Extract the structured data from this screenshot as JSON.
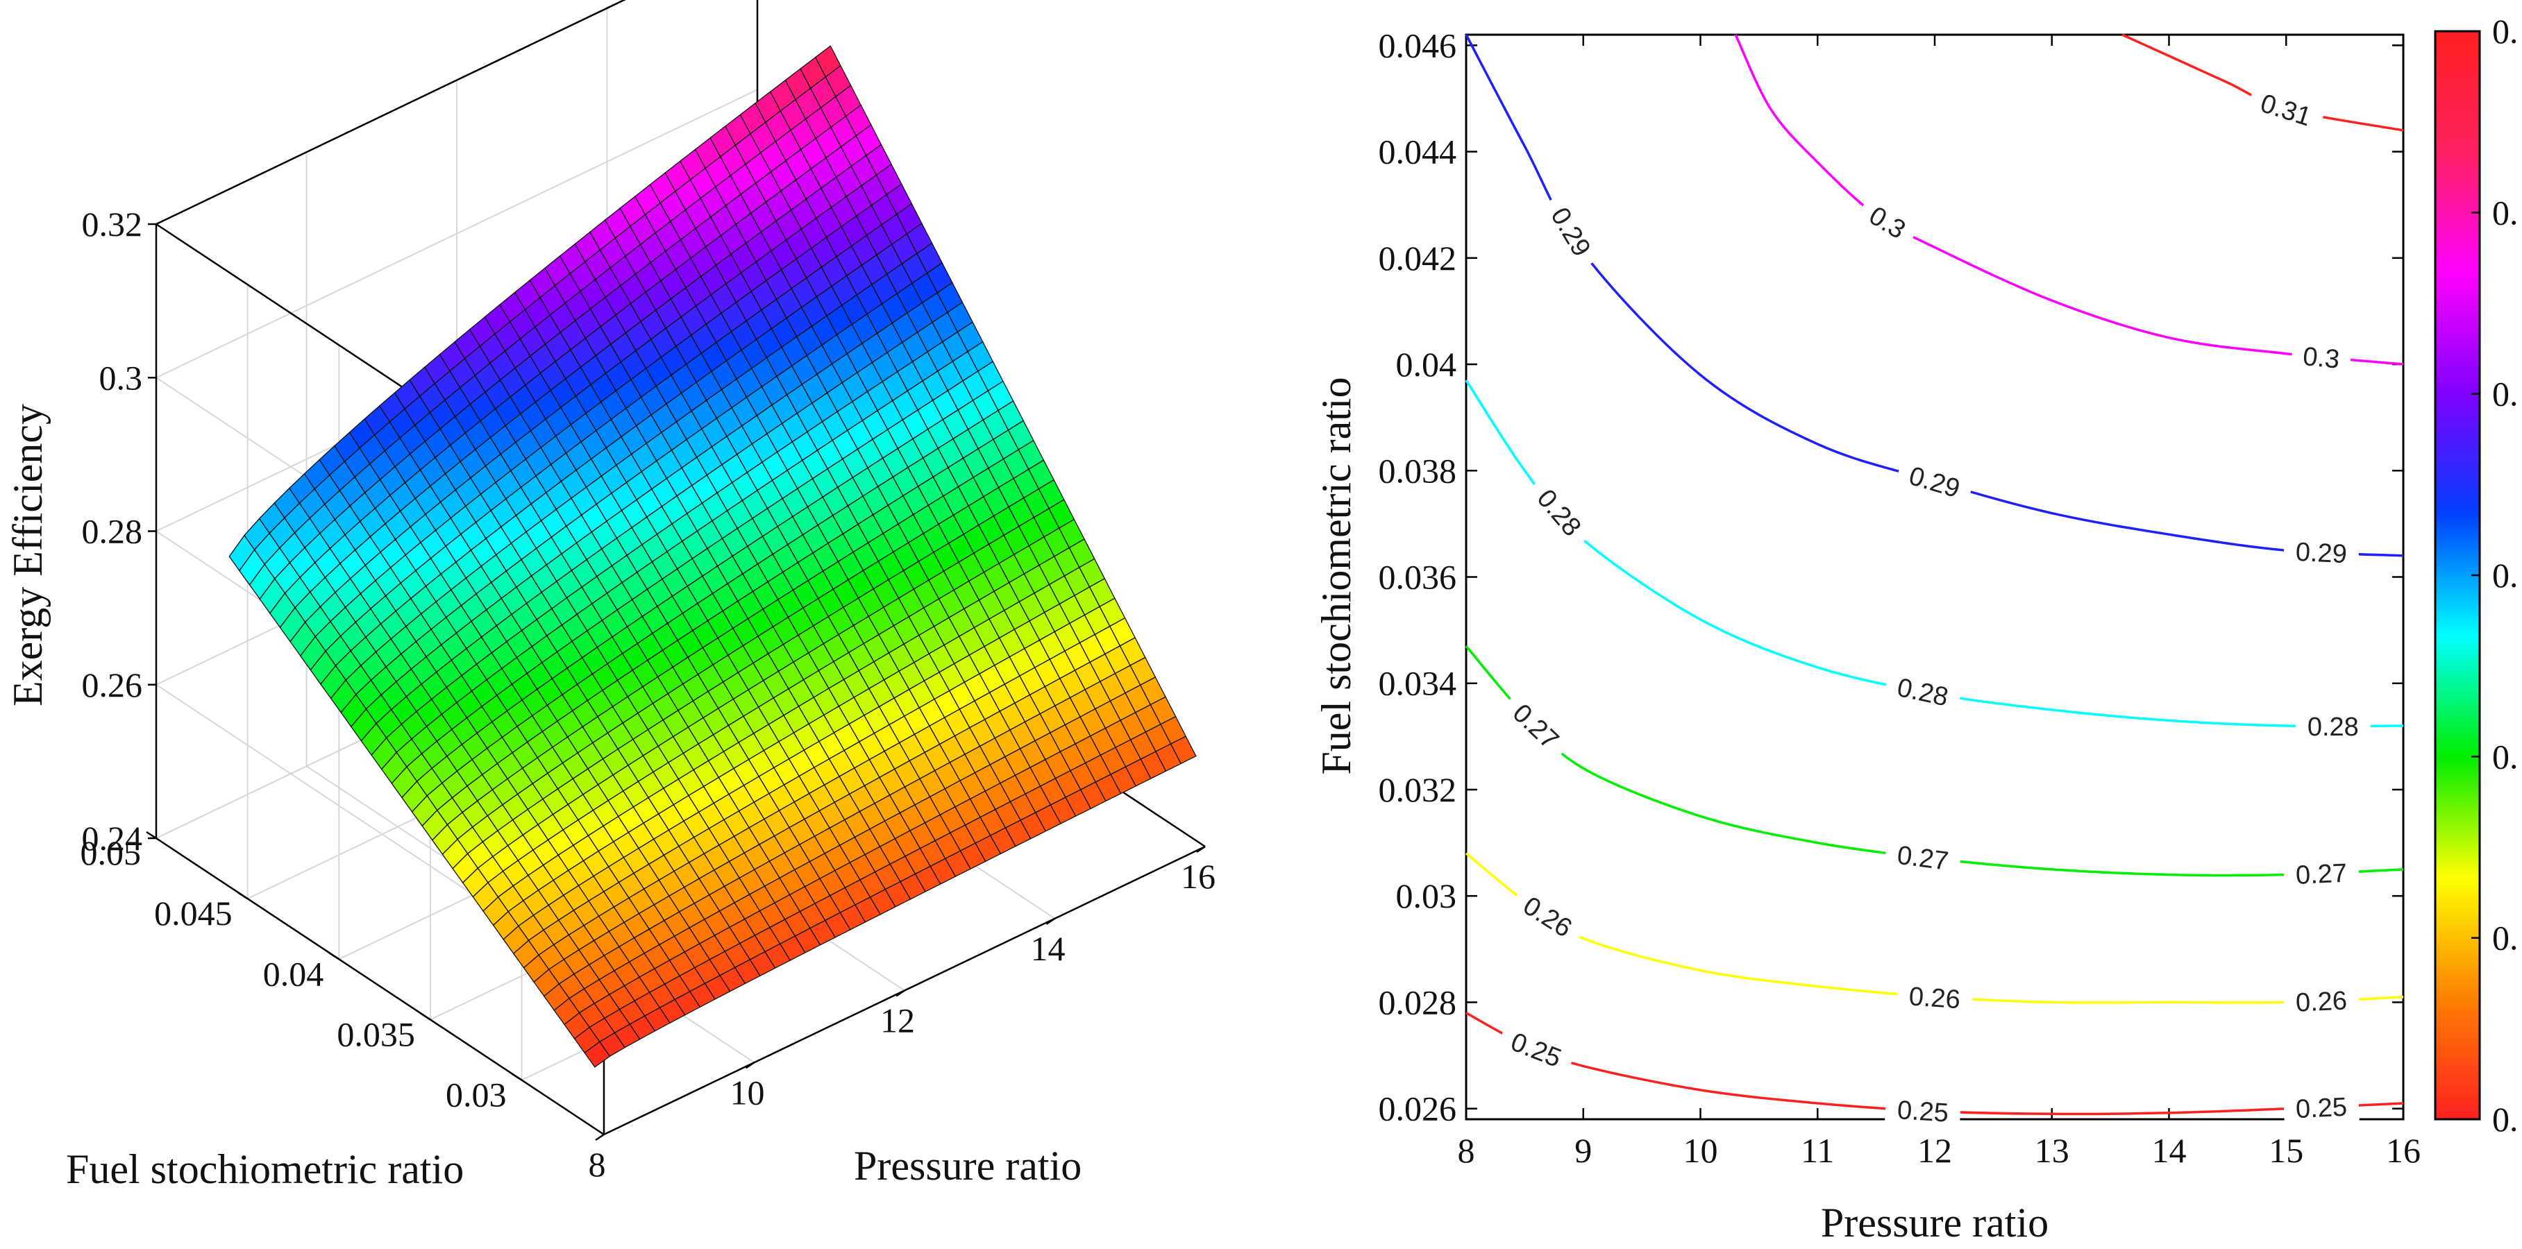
{
  "chart_data": [
    {
      "type": "surface3d",
      "xlabel": "Pressure ratio",
      "ylabel": "Fuel stochiometric ratio",
      "zlabel": "Exergy Efficiency",
      "x_ticks": [
        "8",
        "10",
        "12",
        "14",
        "16"
      ],
      "y_ticks": [
        "0.05",
        "0.045",
        "0.04",
        "0.035",
        "0.03"
      ],
      "z_ticks": [
        "0.32",
        "0.3",
        "0.28",
        "0.26",
        "0.24"
      ],
      "xlim": [
        8,
        16
      ],
      "ylim": [
        0.0255,
        0.05
      ],
      "zlim": [
        0.24,
        0.32
      ],
      "corner_values": [
        {
          "x": 8,
          "y": 0.026,
          "z": 0.248
        },
        {
          "x": 16,
          "y": 0.026,
          "z": 0.251
        },
        {
          "x": 8,
          "y": 0.046,
          "z": 0.283
        },
        {
          "x": 16,
          "y": 0.046,
          "z": 0.312
        }
      ],
      "grid": true
    },
    {
      "type": "contour",
      "xlabel": "Pressure ratio",
      "ylabel": "Fuel stochiometric ratio",
      "xlim": [
        8,
        16
      ],
      "ylim": [
        0.0258,
        0.0462
      ],
      "x_ticks": [
        "8",
        "9",
        "10",
        "11",
        "12",
        "13",
        "14",
        "15",
        "16"
      ],
      "y_ticks": [
        "0.046",
        "0.044",
        "0.042",
        "0.04",
        "0.038",
        "0.036",
        "0.034",
        "0.032",
        "0.03",
        "0.028",
        "0.026"
      ],
      "levels": [
        {
          "value": 0.25,
          "color": "#ff2020",
          "points": [
            [
              8,
              0.0278
            ],
            [
              8.5,
              0.0272
            ],
            [
              9,
              0.0268
            ],
            [
              10,
              0.02635
            ],
            [
              11,
              0.0261
            ],
            [
              12,
              0.02595
            ],
            [
              13,
              0.0259
            ],
            [
              14,
              0.02592
            ],
            [
              15,
              0.026
            ],
            [
              16,
              0.0261
            ]
          ],
          "labels": [
            {
              "x": 8.6,
              "text": "0.25"
            },
            {
              "x": 11.9,
              "text": "0.25"
            },
            {
              "x": 15.3,
              "text": "0.25"
            }
          ]
        },
        {
          "value": 0.26,
          "color": "#ffff00",
          "points": [
            [
              8,
              0.0308
            ],
            [
              8.5,
              0.0299
            ],
            [
              9,
              0.0292
            ],
            [
              10,
              0.0286
            ],
            [
              11,
              0.0283
            ],
            [
              12,
              0.0281
            ],
            [
              13,
              0.028
            ],
            [
              14,
              0.028
            ],
            [
              15,
              0.028
            ],
            [
              16,
              0.0281
            ]
          ],
          "labels": [
            {
              "x": 8.7,
              "text": "0.26"
            },
            {
              "x": 12.0,
              "text": "0.26"
            },
            {
              "x": 15.3,
              "text": "0.26"
            }
          ]
        },
        {
          "value": 0.27,
          "color": "#00ee00",
          "points": [
            [
              8,
              0.0347
            ],
            [
              8.5,
              0.0334
            ],
            [
              9,
              0.0324
            ],
            [
              10,
              0.0315
            ],
            [
              11,
              0.031
            ],
            [
              12,
              0.0307
            ],
            [
              13,
              0.0305
            ],
            [
              14,
              0.0304
            ],
            [
              15,
              0.0304
            ],
            [
              16,
              0.0305
            ]
          ],
          "labels": [
            {
              "x": 8.6,
              "text": "0.27"
            },
            {
              "x": 11.9,
              "text": "0.27"
            },
            {
              "x": 15.3,
              "text": "0.27"
            }
          ]
        },
        {
          "value": 0.28,
          "color": "#00ffff",
          "points": [
            [
              8,
              0.0397
            ],
            [
              8.5,
              0.038
            ],
            [
              9,
              0.0367
            ],
            [
              10,
              0.0352
            ],
            [
              11,
              0.0343
            ],
            [
              12,
              0.0338
            ],
            [
              13,
              0.0335
            ],
            [
              14,
              0.0333
            ],
            [
              15,
              0.0332
            ],
            [
              16,
              0.0332
            ]
          ],
          "labels": [
            {
              "x": 8.8,
              "text": "0.28"
            },
            {
              "x": 11.9,
              "text": "0.28"
            },
            {
              "x": 15.4,
              "text": "0.28"
            }
          ]
        },
        {
          "value": 0.29,
          "color": "#2020ff",
          "points": [
            [
              8,
              0.0462
            ],
            [
              8.5,
              0.0441
            ],
            [
              9,
              0.0421
            ],
            [
              10,
              0.0398
            ],
            [
              11,
              0.0385
            ],
            [
              12,
              0.0378
            ],
            [
              13,
              0.0372
            ],
            [
              14,
              0.0368
            ],
            [
              15,
              0.0365
            ],
            [
              16,
              0.0364
            ]
          ],
          "labels": [
            {
              "x": 8.9,
              "text": "0.29"
            },
            {
              "x": 12.0,
              "text": "0.29"
            },
            {
              "x": 15.3,
              "text": "0.29"
            }
          ]
        },
        {
          "value": 0.3,
          "color": "#ff00ff",
          "points": [
            [
              10.3,
              0.0462
            ],
            [
              10.6,
              0.0448
            ],
            [
              11,
              0.0438
            ],
            [
              11.5,
              0.0428
            ],
            [
              12,
              0.0422
            ],
            [
              13,
              0.0412
            ],
            [
              14,
              0.0405
            ],
            [
              15,
              0.0402
            ],
            [
              16,
              0.04
            ]
          ],
          "labels": [
            {
              "x": 11.6,
              "text": "0.3"
            },
            {
              "x": 15.3,
              "text": "0.3"
            }
          ]
        },
        {
          "value": 0.31,
          "color": "#ff2020",
          "points": [
            [
              13.6,
              0.0462
            ],
            [
              14,
              0.0458
            ],
            [
              14.5,
              0.0453
            ],
            [
              15,
              0.0448
            ],
            [
              16,
              0.0444
            ]
          ],
          "labels": [
            {
              "x": 15.0,
              "text": "0.31"
            }
          ]
        }
      ],
      "colorbar": {
        "stops": [
          "#ff2020",
          "#ff8000",
          "#ffff00",
          "#00ee00",
          "#00ffff",
          "#0040ff",
          "#8000ff",
          "#ff00ff",
          "#ff2060",
          "#ff2020"
        ],
        "tick_labels": [
          "0.",
          "0.",
          "0.",
          "0.",
          "0.",
          "0.",
          "0."
        ]
      }
    }
  ]
}
